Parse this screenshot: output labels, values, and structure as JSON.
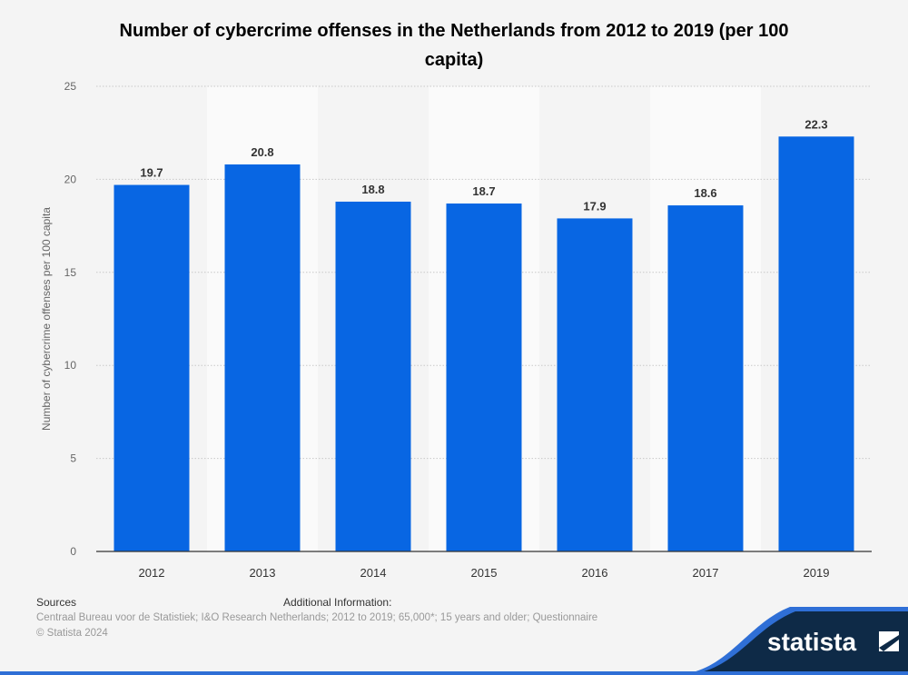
{
  "chart_data": {
    "type": "bar",
    "title": "Number of cybercrime offenses in the Netherlands from 2012 to 2019 (per 100 capita)",
    "xlabel": "",
    "ylabel": "Number of cybercrime offenses per 100 capita",
    "categories": [
      "2012",
      "2013",
      "2014",
      "2015",
      "2016",
      "2017",
      "2019"
    ],
    "values": [
      19.7,
      20.8,
      18.8,
      18.7,
      17.9,
      18.6,
      22.3
    ],
    "ylim": [
      0,
      25
    ],
    "yticks": [
      0,
      5,
      10,
      15,
      20,
      25
    ],
    "grid": true,
    "bar_color": "#0866e3"
  },
  "footer": {
    "sources_label": "Sources",
    "sources_text": "Centraal Bureau voor de Statistiek; I&O Research Netherlands; 2012 to 2019; 65,000*; 15 years and older; Questionnaire",
    "additional_label": "Additional Information:",
    "copyright": "© Statista 2024"
  },
  "logo": {
    "text": "statista",
    "bg_color": "#0e2a47",
    "accent_color": "#2f6fd6"
  }
}
